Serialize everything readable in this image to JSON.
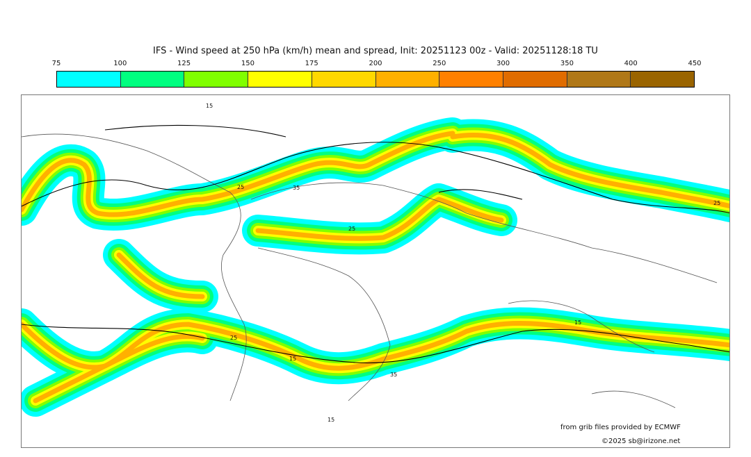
{
  "title": "IFS - Wind speed at 250 hPa (km/h) mean and spread, Init: 20251123 00z - Valid: 20251128:18 TU",
  "colorbar": {
    "ticks": [
      "75",
      "100",
      "125",
      "150",
      "175",
      "200",
      "250",
      "300",
      "350",
      "400",
      "450"
    ],
    "colors": [
      "#00ffff",
      "#00ff80",
      "#80ff00",
      "#ffff00",
      "#ffd800",
      "#ffb000",
      "#ff8000",
      "#e06c00",
      "#b07818",
      "#9a6400"
    ]
  },
  "spread_contour_labels": [
    "15",
    "25",
    "35"
  ],
  "credits": {
    "source": "from grib files provided by ECMWF",
    "copyright": "©2025 sb@irizone.net"
  }
}
